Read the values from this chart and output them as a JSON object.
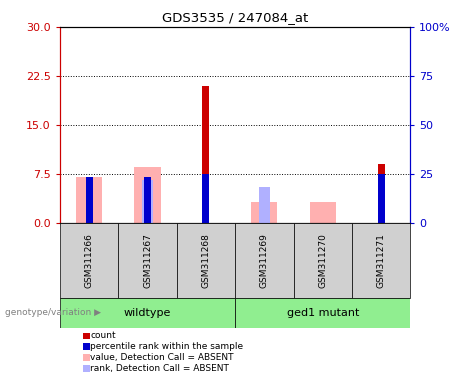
{
  "title": "GDS3535 / 247084_at",
  "samples": [
    "GSM311266",
    "GSM311267",
    "GSM311268",
    "GSM311269",
    "GSM311270",
    "GSM311271"
  ],
  "wildtype_label": "wildtype",
  "mutant_label": "ged1 mutant",
  "genotype_label": "genotype/variation",
  "ylim_left": [
    0,
    30
  ],
  "ylim_right": [
    0,
    100
  ],
  "yticks_left": [
    0,
    7.5,
    15,
    22.5,
    30
  ],
  "yticks_right": [
    0,
    25,
    50,
    75,
    100
  ],
  "yticklabels_right": [
    "0",
    "25",
    "50",
    "75",
    "100%"
  ],
  "left_axis_color": "#cc0000",
  "right_axis_color": "#0000cc",
  "count_values": [
    null,
    null,
    21.0,
    null,
    null,
    9.0
  ],
  "rank_values": [
    7.0,
    7.0,
    7.5,
    null,
    null,
    7.5
  ],
  "absent_value_values": [
    7.0,
    8.5,
    null,
    3.2,
    3.2,
    null
  ],
  "absent_rank_values": [
    null,
    6.5,
    null,
    5.5,
    null,
    null
  ],
  "count_color": "#cc0000",
  "rank_color": "#0000cc",
  "absent_value_color": "#ffb0b0",
  "absent_rank_color": "#b0b0ff",
  "grid_color": "black",
  "plot_bg": "white",
  "sample_bg": "#d0d0d0",
  "green_color": "#90ee90",
  "legend_items": [
    {
      "label": "count",
      "color": "#cc0000"
    },
    {
      "label": "percentile rank within the sample",
      "color": "#0000cc"
    },
    {
      "label": "value, Detection Call = ABSENT",
      "color": "#ffb0b0"
    },
    {
      "label": "rank, Detection Call = ABSENT",
      "color": "#b0b0ff"
    }
  ]
}
